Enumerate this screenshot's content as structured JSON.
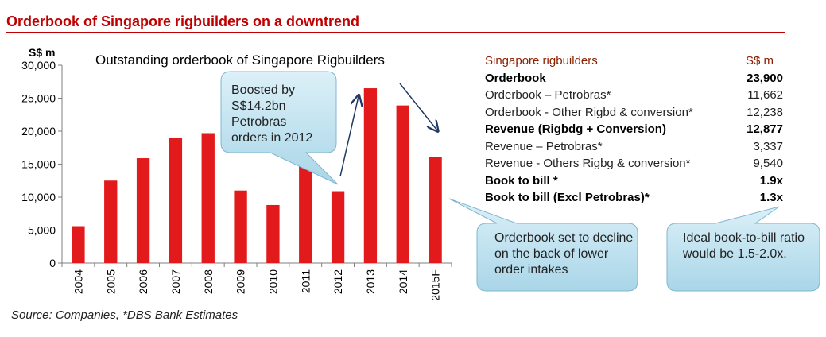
{
  "header": {
    "title": "Orderbook of Singapore rigbuilders on a downtrend"
  },
  "source": "Source: Companies, *DBS Bank Estimates",
  "chart_data": {
    "type": "bar",
    "title": "Outstanding orderbook of Singapore Rigbuilders",
    "ylabel": "S$ m",
    "ylim": [
      0,
      30000
    ],
    "yticks": [
      "0",
      "5,000",
      "10,000",
      "15,000",
      "20,000",
      "25,000",
      "30,000"
    ],
    "categories": [
      "2004",
      "2005",
      "2006",
      "2007",
      "2008",
      "2009",
      "2010",
      "2011",
      "2012",
      "2013",
      "2014",
      "2015F"
    ],
    "values": [
      5600,
      12500,
      15900,
      19000,
      19700,
      11000,
      8800,
      16000,
      10900,
      26500,
      23900,
      16100
    ],
    "bar_color": "#e31a1c",
    "callouts": [
      "Boosted by S$14.2bn Petrobras orders in 2012",
      "Orderbook set to decline on the back of lower order intakes",
      "Ideal book-to-bill ratio would be 1.5-2.0x."
    ]
  },
  "table": {
    "header": {
      "label": "Singapore rigbuilders",
      "unit": "S$ m"
    },
    "rows": [
      {
        "label": "Orderbook",
        "value": "23,900",
        "bold": true
      },
      {
        "label": "Orderbook – Petrobras*",
        "value": "11,662",
        "bold": false
      },
      {
        "label": "Orderbook - Other Rigbd & conversion*",
        "value": "12,238",
        "bold": false
      },
      {
        "label": "Revenue (Rigbdg + Conversion)",
        "value": "12,877",
        "bold": true
      },
      {
        "label": "Revenue – Petrobras*",
        "value": "3,337",
        "bold": false
      },
      {
        "label": "Revenue - Others Rigbg & conversion*",
        "value": "9,540",
        "bold": false
      },
      {
        "label": "Book to bill *",
        "value": "1.9x",
        "bold": true
      },
      {
        "label": "Book to bill (Excl Petrobras)*",
        "value": "1.3x",
        "bold": true
      }
    ]
  }
}
